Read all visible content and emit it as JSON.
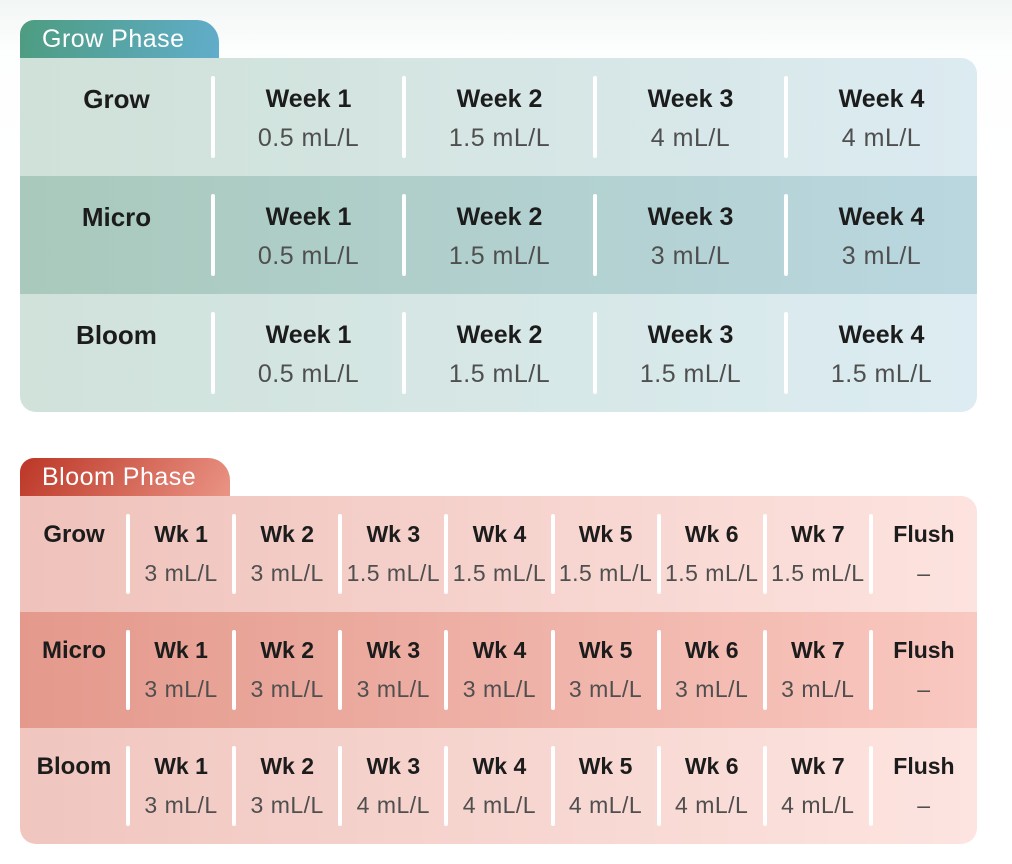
{
  "chart_data": [
    {
      "type": "table",
      "title": "Grow Phase",
      "unit": "mL/L",
      "columns": [
        "Week 1",
        "Week 2",
        "Week 3",
        "Week 4"
      ],
      "rows": [
        {
          "label": "Grow",
          "values": [
            "0.5 mL/L",
            "1.5 mL/L",
            "4 mL/L",
            "4 mL/L"
          ]
        },
        {
          "label": "Micro",
          "values": [
            "0.5 mL/L",
            "1.5 mL/L",
            "3 mL/L",
            "3 mL/L"
          ]
        },
        {
          "label": "Bloom",
          "values": [
            "0.5 mL/L",
            "1.5 mL/L",
            "1.5 mL/L",
            "1.5 mL/L"
          ]
        }
      ]
    },
    {
      "type": "table",
      "title": "Bloom Phase",
      "unit": "mL/L",
      "columns": [
        "Wk 1",
        "Wk 2",
        "Wk 3",
        "Wk 4",
        "Wk 5",
        "Wk 6",
        "Wk 7",
        "Flush"
      ],
      "rows": [
        {
          "label": "Grow",
          "values": [
            "3 mL/L",
            "3 mL/L",
            "1.5 mL/L",
            "1.5 mL/L",
            "1.5 mL/L",
            "1.5 mL/L",
            "1.5 mL/L",
            "–"
          ]
        },
        {
          "label": "Micro",
          "values": [
            "3 mL/L",
            "3 mL/L",
            "3 mL/L",
            "3 mL/L",
            "3 mL/L",
            "3 mL/L",
            "3 mL/L",
            "–"
          ]
        },
        {
          "label": "Bloom",
          "values": [
            "3 mL/L",
            "3 mL/L",
            "4 mL/L",
            "4 mL/L",
            "4 mL/L",
            "4 mL/L",
            "4 mL/L",
            "–"
          ]
        }
      ]
    }
  ],
  "style": {
    "grow_tab_gradient": [
      "#4d9c80",
      "#61adcb"
    ],
    "bloom_tab_gradient": [
      "#bc3626",
      "#ea9485"
    ],
    "grow_row_colors": [
      [
        "#cfe1d8",
        "#dcebf1"
      ],
      [
        "#a9c9bc",
        "#bad7e0"
      ],
      [
        "#d0e2da",
        "#dcecf2"
      ]
    ],
    "bloom_row_colors": [
      [
        "#efc2bb",
        "#fde3df"
      ],
      [
        "#e4998c",
        "#f9c8c0"
      ],
      [
        "#f0c6bf",
        "#fde4e0"
      ]
    ],
    "header_text_color": "#1c1c1c",
    "value_text_color": "#4f4f4f",
    "tab_text_color": "#ffffff",
    "separator_color": "#ffffff"
  }
}
